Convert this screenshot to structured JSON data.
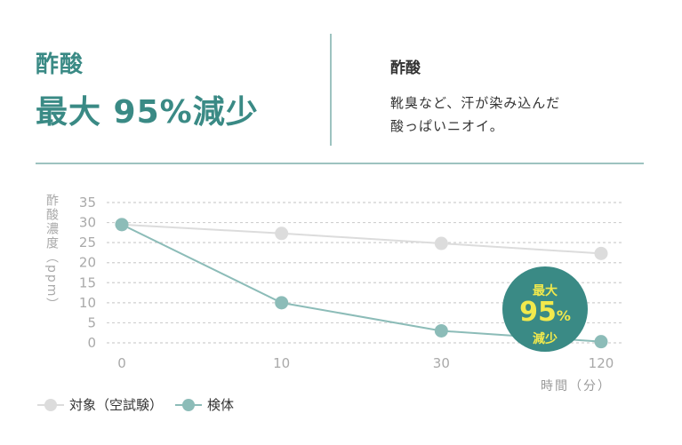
{
  "header": {
    "category": "酢酸",
    "headline": "最大 95%減少",
    "side_title": "酢酸",
    "side_line1": "靴臭など、汗が染み込んだ",
    "side_line2": "酸っぱいニオイ。"
  },
  "badge": {
    "line1": "最大",
    "number": "95",
    "percent": "%",
    "line3": "減少"
  },
  "colors": {
    "accent": "#3a8a85",
    "control": "#dcdcdc",
    "sample": "#8cbcb8",
    "badge_text": "#f2e94c"
  },
  "chart_data": {
    "type": "line",
    "ylabel": "酢酸濃度（ppm）",
    "xlabel": "時間（分）",
    "categories": [
      "0",
      "10",
      "30",
      "120"
    ],
    "yticks": [
      "35",
      "30",
      "25",
      "20",
      "15",
      "10",
      "5",
      "0"
    ],
    "ylim": [
      0,
      35
    ],
    "grid": true,
    "legend": "bottom-left",
    "series": [
      {
        "name": "対象（空試験）",
        "values": [
          29.5,
          27.3,
          24.8,
          22.3
        ]
      },
      {
        "name": "検体",
        "values": [
          29.5,
          10,
          3,
          0.3
        ]
      }
    ]
  }
}
